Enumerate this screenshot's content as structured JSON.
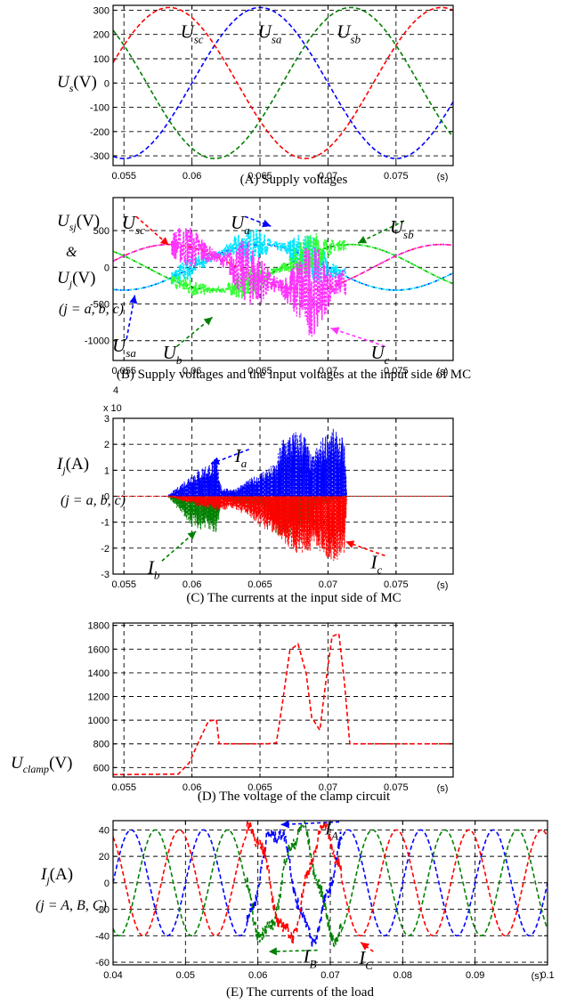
{
  "chart_data": [
    {
      "id": "A",
      "type": "line",
      "caption": "(A) Supply voltages",
      "ylabel": {
        "main": "U",
        "sub": "s",
        "unit": "(V)"
      },
      "xunit": "(s)",
      "xlim": [
        0.0542,
        0.0792
      ],
      "ylim": [
        -340,
        320
      ],
      "xticks": [
        0.055,
        0.06,
        0.065,
        0.07,
        0.075
      ],
      "xtick_labels": [
        "0.055",
        "0.06",
        "0.065",
        "0.07",
        "0.075"
      ],
      "yticks": [
        -300,
        -200,
        -100,
        0,
        100,
        200,
        300
      ],
      "ytick_labels": [
        "-300",
        "-200",
        "-100",
        "0",
        "100",
        "200",
        "300"
      ],
      "grid": true,
      "series": [
        {
          "name": "U_sa",
          "color": "#0000ff",
          "waveform": "sine",
          "amplitude": 311,
          "frequency_hz": 50,
          "phase_deg": 0
        },
        {
          "name": "U_sb",
          "color": "#008000",
          "waveform": "sine",
          "amplitude": 311,
          "frequency_hz": 50,
          "phase_deg": -120
        },
        {
          "name": "U_sc",
          "color": "#ff0000",
          "waveform": "sine",
          "amplitude": 311,
          "frequency_hz": 50,
          "phase_deg": 120
        }
      ],
      "labels": [
        {
          "main": "U",
          "sub": "sc",
          "x": 0.0598,
          "y": 215
        },
        {
          "main": "U",
          "sub": "sa",
          "x": 0.0655,
          "y": 215
        },
        {
          "main": "U",
          "sub": "sb",
          "x": 0.0713,
          "y": 215
        }
      ]
    },
    {
      "id": "B",
      "type": "line",
      "caption": "(B) Supply voltages and the input voltages at the input side of MC",
      "ylabel_lines": [
        {
          "main": "U",
          "sub": "sj",
          "unit": "(V)"
        },
        {
          "text": "&"
        },
        {
          "main": "U",
          "sub": "j",
          "unit": "(V)"
        },
        {
          "text": "(j = a, b, c)"
        }
      ],
      "xunit": "(s)",
      "xlim": [
        0.0542,
        0.0792
      ],
      "ylim": [
        -1270,
        950
      ],
      "xticks": [
        0.055,
        0.06,
        0.065,
        0.07,
        0.075
      ],
      "xtick_labels": [
        "0.055",
        "0.06",
        "0.065",
        "0.07",
        "0.075"
      ],
      "yticks": [
        -1000,
        -500,
        0,
        500
      ],
      "ytick_labels": [
        "-1000",
        "-500",
        "0",
        "500"
      ],
      "grid": true,
      "series": [
        {
          "name": "U_sa",
          "color": "#0000ff",
          "waveform": "sine",
          "amplitude": 311,
          "frequency_hz": 50,
          "phase_deg": 0
        },
        {
          "name": "U_sb",
          "color": "#008000",
          "waveform": "sine",
          "amplitude": 311,
          "frequency_hz": 50,
          "phase_deg": -120
        },
        {
          "name": "U_sc",
          "color": "#ff0000",
          "waveform": "sine",
          "amplitude": 311,
          "frequency_hz": 50,
          "phase_deg": 120
        },
        {
          "name": "U_a",
          "color": "#00e5ff",
          "waveform": "noisy_sine",
          "amplitude": 311,
          "frequency_hz": 50,
          "phase_deg": 0,
          "noise_span": [
            0.0585,
            0.0713
          ],
          "noise_peak": 420
        },
        {
          "name": "U_b",
          "color": "#33ff33",
          "waveform": "noisy_sine",
          "amplitude": 311,
          "frequency_hz": 50,
          "phase_deg": -120,
          "noise_span": [
            0.0585,
            0.0713
          ],
          "noise_peak": 350
        },
        {
          "name": "U_c",
          "color": "#ff33ff",
          "waveform": "noisy_sine",
          "amplitude": 311,
          "frequency_hz": 50,
          "phase_deg": 120,
          "noise_span": [
            0.0585,
            0.0713
          ],
          "noise_peak": 780
        }
      ],
      "labels": [
        {
          "main": "U",
          "sub": "sc",
          "x": 0.0555,
          "y": 620,
          "arrow_to": [
            0.0583,
            300
          ],
          "color": "#ff0000"
        },
        {
          "main": "U",
          "sub": "a",
          "x": 0.0635,
          "y": 620,
          "arrow_to": [
            0.0658,
            560
          ],
          "color": "#0000ff"
        },
        {
          "main": "U",
          "sub": "sb",
          "x": 0.0752,
          "y": 560,
          "arrow_to": [
            0.0722,
            330
          ],
          "color": "#008000"
        },
        {
          "main": "U",
          "sub": "sa",
          "x": 0.0548,
          "y": -1050,
          "arrow_to": [
            0.0558,
            -380
          ],
          "color": "#0000ff"
        },
        {
          "main": "U",
          "sub": "b",
          "x": 0.0585,
          "y": -1150,
          "arrow_to": [
            0.0615,
            -680
          ],
          "color": "#008000"
        },
        {
          "main": "U",
          "sub": "c",
          "x": 0.0738,
          "y": -1150,
          "arrow_to": [
            0.0702,
            -830
          ],
          "color": "#ff33ff"
        }
      ]
    },
    {
      "id": "C",
      "type": "line",
      "caption": "(C) The currents at the input side of MC",
      "multiplier": "x 10",
      "multiplier_exp": "4",
      "ylabel_lines": [
        {
          "main": "I",
          "sub": "j",
          "unit": "(A)"
        },
        {
          "text": "(j = a, b, c)"
        }
      ],
      "xunit": "(s)",
      "xlim": [
        0.0542,
        0.0792
      ],
      "ylim": [
        -3,
        3
      ],
      "xticks": [
        0.055,
        0.06,
        0.065,
        0.07,
        0.075
      ],
      "xtick_labels": [
        "0.055",
        "0.06",
        "0.065",
        "0.07",
        "0.075"
      ],
      "yticks": [
        -3,
        -2,
        -1,
        0,
        1,
        2,
        3
      ],
      "ytick_labels": [
        "-3",
        "-2",
        "-1",
        "0",
        "1",
        "2",
        "3"
      ],
      "grid": true,
      "series": [
        {
          "name": "I_a",
          "color": "#0000ff",
          "side": "positive",
          "envelope": [
            [
              0.0582,
              0
            ],
            [
              0.06,
              0.9
            ],
            [
              0.0618,
              1.5
            ],
            [
              0.0622,
              0.3
            ],
            [
              0.0632,
              0.3
            ],
            [
              0.0652,
              1.0
            ],
            [
              0.0662,
              1.3
            ],
            [
              0.0666,
              2.3
            ],
            [
              0.0672,
              2.5
            ],
            [
              0.0682,
              2.6
            ],
            [
              0.0688,
              1.5
            ],
            [
              0.0692,
              2.0
            ],
            [
              0.0702,
              2.7
            ],
            [
              0.0712,
              2.2
            ],
            [
              0.0714,
              0
            ]
          ]
        },
        {
          "name": "I_b",
          "color": "#008000",
          "side": "negative",
          "envelope": [
            [
              0.0582,
              0
            ],
            [
              0.06,
              -1.2
            ],
            [
              0.0618,
              -1.5
            ],
            [
              0.0622,
              -0.2
            ],
            [
              0.0652,
              -0.4
            ],
            [
              0.0662,
              -1.5
            ],
            [
              0.0672,
              -1.6
            ],
            [
              0.0682,
              -1.4
            ],
            [
              0.0692,
              -0.5
            ],
            [
              0.0714,
              0
            ]
          ]
        },
        {
          "name": "I_c",
          "color": "#ff0000",
          "side": "negative",
          "envelope": [
            [
              0.0582,
              0
            ],
            [
              0.0605,
              -0.4
            ],
            [
              0.0618,
              -0.6
            ],
            [
              0.0632,
              -0.5
            ],
            [
              0.0652,
              -1.2
            ],
            [
              0.0668,
              -1.8
            ],
            [
              0.0678,
              -2.3
            ],
            [
              0.0692,
              -2.0
            ],
            [
              0.0702,
              -2.6
            ],
            [
              0.0712,
              -2.3
            ],
            [
              0.0714,
              0
            ]
          ]
        }
      ],
      "labels": [
        {
          "main": "I",
          "sub": "a",
          "x": 0.0638,
          "y": 1.6,
          "arrow_to": [
            0.0614,
            1.25
          ],
          "color": "#0000ff"
        },
        {
          "main": "I",
          "sub": "b",
          "x": 0.0574,
          "y": -2.7,
          "arrow_to": [
            0.0603,
            -1.35
          ],
          "color": "#008000"
        },
        {
          "main": "I",
          "sub": "c",
          "x": 0.0738,
          "y": -2.5,
          "arrow_to": [
            0.0713,
            -1.75
          ],
          "color": "#ff0000"
        }
      ]
    },
    {
      "id": "D",
      "type": "line",
      "caption": "(D) The voltage of the clamp circuit",
      "ylabel": {
        "main": "U",
        "sub": "clamp",
        "unit": "(V)"
      },
      "xunit": "(s)",
      "xlim": [
        0.0542,
        0.0792
      ],
      "ylim": [
        520,
        1820
      ],
      "xticks": [
        0.055,
        0.06,
        0.065,
        0.07,
        0.075
      ],
      "xtick_labels": [
        "0.055",
        "0.06",
        "0.065",
        "0.07",
        "0.075"
      ],
      "yticks": [
        600,
        800,
        1000,
        1200,
        1400,
        1600,
        1800
      ],
      "ytick_labels": [
        "600",
        "800",
        "1000",
        "1200",
        "1400",
        "1600",
        "1800"
      ],
      "grid": true,
      "series": [
        {
          "name": "U_clamp",
          "color": "#ff0000",
          "points": [
            [
              0.0542,
              540
            ],
            [
              0.059,
              545
            ],
            [
              0.0598,
              640
            ],
            [
              0.0605,
              820
            ],
            [
              0.0612,
              960
            ],
            [
              0.0618,
              1040
            ],
            [
              0.062,
              800
            ],
            [
              0.0655,
              800
            ],
            [
              0.0662,
              840
            ],
            [
              0.0666,
              1100
            ],
            [
              0.0672,
              1600
            ],
            [
              0.0678,
              1650
            ],
            [
              0.0684,
              1380
            ],
            [
              0.0688,
              1000
            ],
            [
              0.0694,
              930
            ],
            [
              0.0698,
              1300
            ],
            [
              0.0703,
              1700
            ],
            [
              0.0708,
              1760
            ],
            [
              0.0712,
              1350
            ],
            [
              0.0716,
              800
            ],
            [
              0.0792,
              800
            ]
          ]
        }
      ]
    },
    {
      "id": "E",
      "type": "line",
      "caption": "(E) The currents of the load",
      "ylabel_lines": [
        {
          "main": "I",
          "sub": "j",
          "unit": "(A)"
        },
        {
          "text": "(j = A, B, C)"
        }
      ],
      "xunit": "(s)",
      "xlim": [
        0.04,
        0.1
      ],
      "ylim": [
        -62,
        47
      ],
      "xticks": [
        0.04,
        0.05,
        0.06,
        0.07,
        0.08,
        0.09,
        0.1
      ],
      "xtick_labels": [
        "0.04",
        "0.05",
        "0.06",
        "0.07",
        "0.08",
        "0.09",
        "0.1"
      ],
      "yticks": [
        -60,
        -40,
        -20,
        0,
        20,
        40
      ],
      "ytick_labels": [
        "-60",
        "-40",
        "-20",
        "0",
        "20",
        "40"
      ],
      "grid": true,
      "series": [
        {
          "name": "I_A",
          "color": "#0000ff",
          "waveform": "sine",
          "amplitude": 40,
          "frequency_hz": 100,
          "phase_deg": 0,
          "distortion_span": [
            0.0585,
            0.0715
          ]
        },
        {
          "name": "I_B",
          "color": "#008000",
          "waveform": "sine",
          "amplitude": 40,
          "frequency_hz": 100,
          "phase_deg": -120,
          "distortion_span": [
            0.0585,
            0.0715
          ]
        },
        {
          "name": "I_C",
          "color": "#ff0000",
          "waveform": "sine",
          "amplitude": 40,
          "frequency_hz": 100,
          "phase_deg": 120,
          "distortion_span": [
            0.0585,
            0.0715
          ]
        }
      ],
      "labels": [
        {
          "main": "I",
          "sub": "A",
          "x": 0.0705,
          "y": 42,
          "arrow_to": [
            0.0632,
            44
          ],
          "color": "#0000ff"
        },
        {
          "main": "I",
          "sub": "B",
          "x": 0.0675,
          "y": -55,
          "arrow_to": [
            0.0615,
            -52
          ],
          "color": "#008000"
        },
        {
          "main": "I",
          "sub": "C",
          "x": 0.0752,
          "y": -56,
          "arrow_to": [
            0.0742,
            -45
          ],
          "color": "#ff0000"
        }
      ]
    }
  ]
}
